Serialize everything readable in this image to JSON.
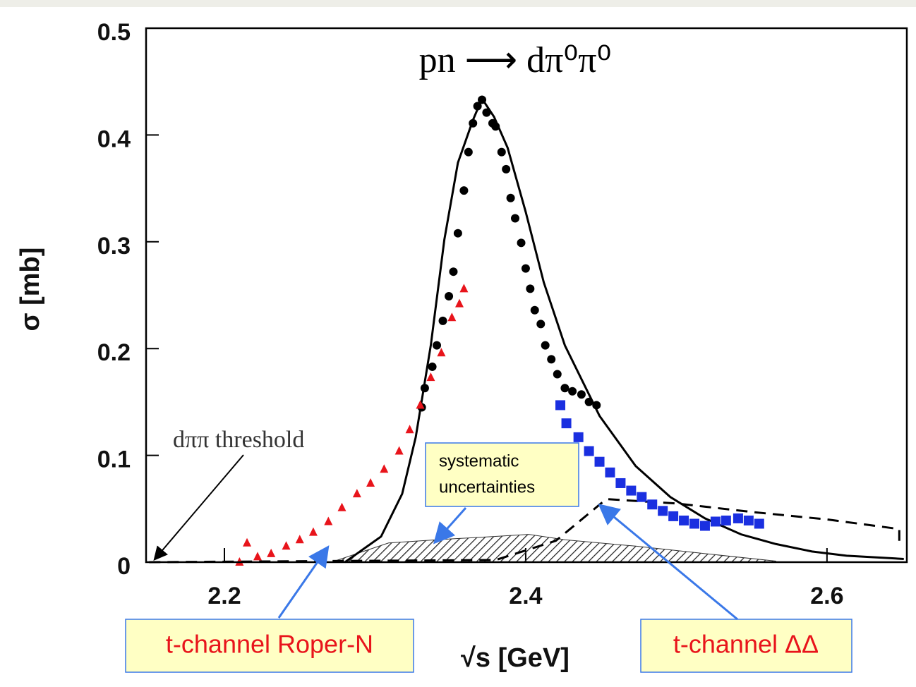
{
  "chart_data": {
    "type": "scatter",
    "title": "pn ⟶ dπ⁰π⁰",
    "x_label": "√s [GeV]",
    "y_label": "σ [mb]",
    "xlim": [
      2.148,
      2.653
    ],
    "ylim": [
      0,
      0.5
    ],
    "xticks": [
      2.2,
      2.4,
      2.6
    ],
    "yticks": [
      0,
      0.1,
      0.2,
      0.3,
      0.4,
      0.5
    ],
    "series": [
      {
        "marker": "circle",
        "color": "#000000",
        "x": [
          2.331,
          2.333,
          2.338,
          2.341,
          2.345,
          2.349,
          2.352,
          2.355,
          2.359,
          2.362,
          2.365,
          2.368,
          2.371,
          2.374,
          2.378,
          2.38,
          2.384,
          2.387,
          2.39,
          2.393,
          2.397,
          2.4,
          2.403,
          2.406,
          2.41,
          2.413,
          2.417,
          2.421,
          2.426,
          2.431,
          2.437,
          2.442,
          2.447
        ],
        "values": [
          0.145,
          0.163,
          0.183,
          0.203,
          0.226,
          0.249,
          0.272,
          0.308,
          0.348,
          0.384,
          0.411,
          0.427,
          0.433,
          0.421,
          0.411,
          0.408,
          0.384,
          0.368,
          0.341,
          0.322,
          0.299,
          0.275,
          0.256,
          0.236,
          0.223,
          0.203,
          0.19,
          0.176,
          0.163,
          0.16,
          0.157,
          0.15,
          0.147
        ]
      },
      {
        "marker": "triangle",
        "color": "#e8141b",
        "x": [
          2.21,
          2.215,
          2.222,
          2.231,
          2.241,
          2.25,
          2.259,
          2.269,
          2.278,
          2.288,
          2.297,
          2.306,
          2.316,
          2.323,
          2.33,
          2.337,
          2.344,
          2.351,
          2.356,
          2.359
        ],
        "values": [
          0,
          0.018,
          0.005,
          0.008,
          0.015,
          0.021,
          0.028,
          0.038,
          0.051,
          0.064,
          0.074,
          0.087,
          0.104,
          0.124,
          0.147,
          0.173,
          0.196,
          0.229,
          0.242,
          0.256
        ]
      },
      {
        "marker": "square",
        "color": "#1a2fe0",
        "x": [
          2.423,
          2.427,
          2.435,
          2.442,
          2.449,
          2.456,
          2.463,
          2.47,
          2.477,
          2.484,
          2.491,
          2.498,
          2.505,
          2.512,
          2.519,
          2.526,
          2.533,
          2.541,
          2.548,
          2.555
        ],
        "values": [
          0.147,
          0.13,
          0.117,
          0.104,
          0.094,
          0.084,
          0.074,
          0.067,
          0.061,
          0.054,
          0.048,
          0.043,
          0.039,
          0.036,
          0.034,
          0.038,
          0.039,
          0.041,
          0.039,
          0.036
        ]
      }
    ],
    "lines": [
      {
        "style": "solid",
        "color": "#000000",
        "x": [
          2.28,
          2.304,
          2.318,
          2.327,
          2.337,
          2.346,
          2.355,
          2.365,
          2.371,
          2.379,
          2.388,
          2.4,
          2.412,
          2.426,
          2.449,
          2.473,
          2.496,
          2.519,
          2.543,
          2.566,
          2.59,
          2.613,
          2.651
        ],
        "values": [
          0,
          0.024,
          0.064,
          0.117,
          0.203,
          0.302,
          0.374,
          0.414,
          0.434,
          0.417,
          0.388,
          0.328,
          0.262,
          0.203,
          0.137,
          0.09,
          0.061,
          0.041,
          0.026,
          0.017,
          0.01,
          0.006,
          0.003
        ]
      },
      {
        "style": "dashed",
        "color": "#000000",
        "x": [
          2.15,
          2.38,
          2.42,
          2.45,
          2.454,
          2.5,
          2.55,
          2.6,
          2.648,
          2.648
        ],
        "values": [
          0,
          0.002,
          0.02,
          0.055,
          0.059,
          0.055,
          0.047,
          0.04,
          0.031,
          0.02
        ]
      }
    ],
    "band": {
      "color": "#333333",
      "x": [
        2.271,
        2.309,
        2.341,
        2.379,
        2.402,
        2.426,
        2.473,
        2.519,
        2.566
      ],
      "values": [
        0,
        0.018,
        0.021,
        0.024,
        0.026,
        0.021,
        0.015,
        0.008,
        0.001
      ]
    },
    "annotations": {
      "threshold": "dππ threshold",
      "systematic_1": "systematic",
      "systematic_2": "uncertainties",
      "roper": "t-channel Roper-N",
      "delta": "t-channel ΔΔ"
    }
  }
}
